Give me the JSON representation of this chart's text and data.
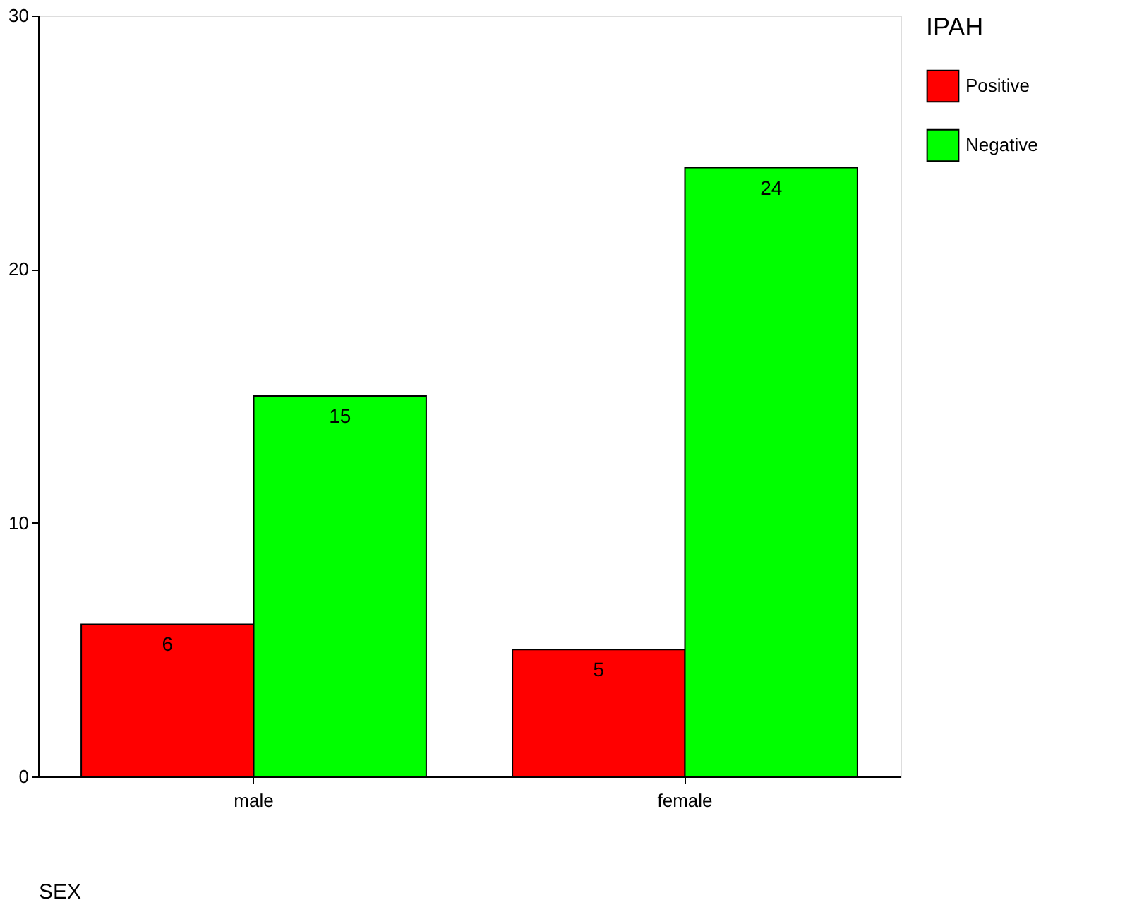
{
  "chart_data": {
    "type": "bar",
    "xlabel": "SEX",
    "legend_title": "IPAH",
    "categories": [
      "male",
      "female"
    ],
    "series": [
      {
        "name": "Positive",
        "color": "#ff0000",
        "values": [
          6,
          5
        ]
      },
      {
        "name": "Negative",
        "color": "#00ff00",
        "values": [
          15,
          24
        ]
      }
    ],
    "ylim": [
      0,
      30
    ],
    "yticks": [
      0,
      10,
      20,
      30
    ],
    "grid": false,
    "legend": "right",
    "data_labels": true
  }
}
